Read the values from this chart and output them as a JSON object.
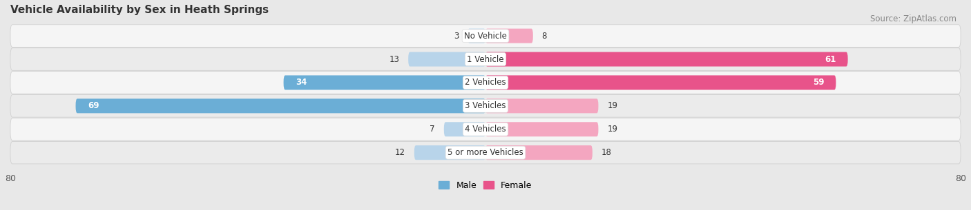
{
  "title": "Vehicle Availability by Sex in Heath Springs",
  "source": "Source: ZipAtlas.com",
  "categories": [
    "No Vehicle",
    "1 Vehicle",
    "2 Vehicles",
    "3 Vehicles",
    "4 Vehicles",
    "5 or more Vehicles"
  ],
  "male_values": [
    3,
    13,
    34,
    69,
    7,
    12
  ],
  "female_values": [
    8,
    61,
    59,
    19,
    19,
    18
  ],
  "male_color_strong": "#6baed6",
  "male_color_light": "#b8d4ea",
  "female_color_strong": "#e8538a",
  "female_color_light": "#f4a6c0",
  "strong_threshold": 25,
  "bar_height": 0.62,
  "xlim": [
    -80,
    80
  ],
  "xticks": [
    -80,
    80
  ],
  "background_color": "#e8e8e8",
  "row_bg_odd": "#f5f5f5",
  "row_bg_even": "#ebebeb",
  "title_fontsize": 11,
  "label_fontsize": 9,
  "source_fontsize": 8.5,
  "value_label_threshold": 25
}
